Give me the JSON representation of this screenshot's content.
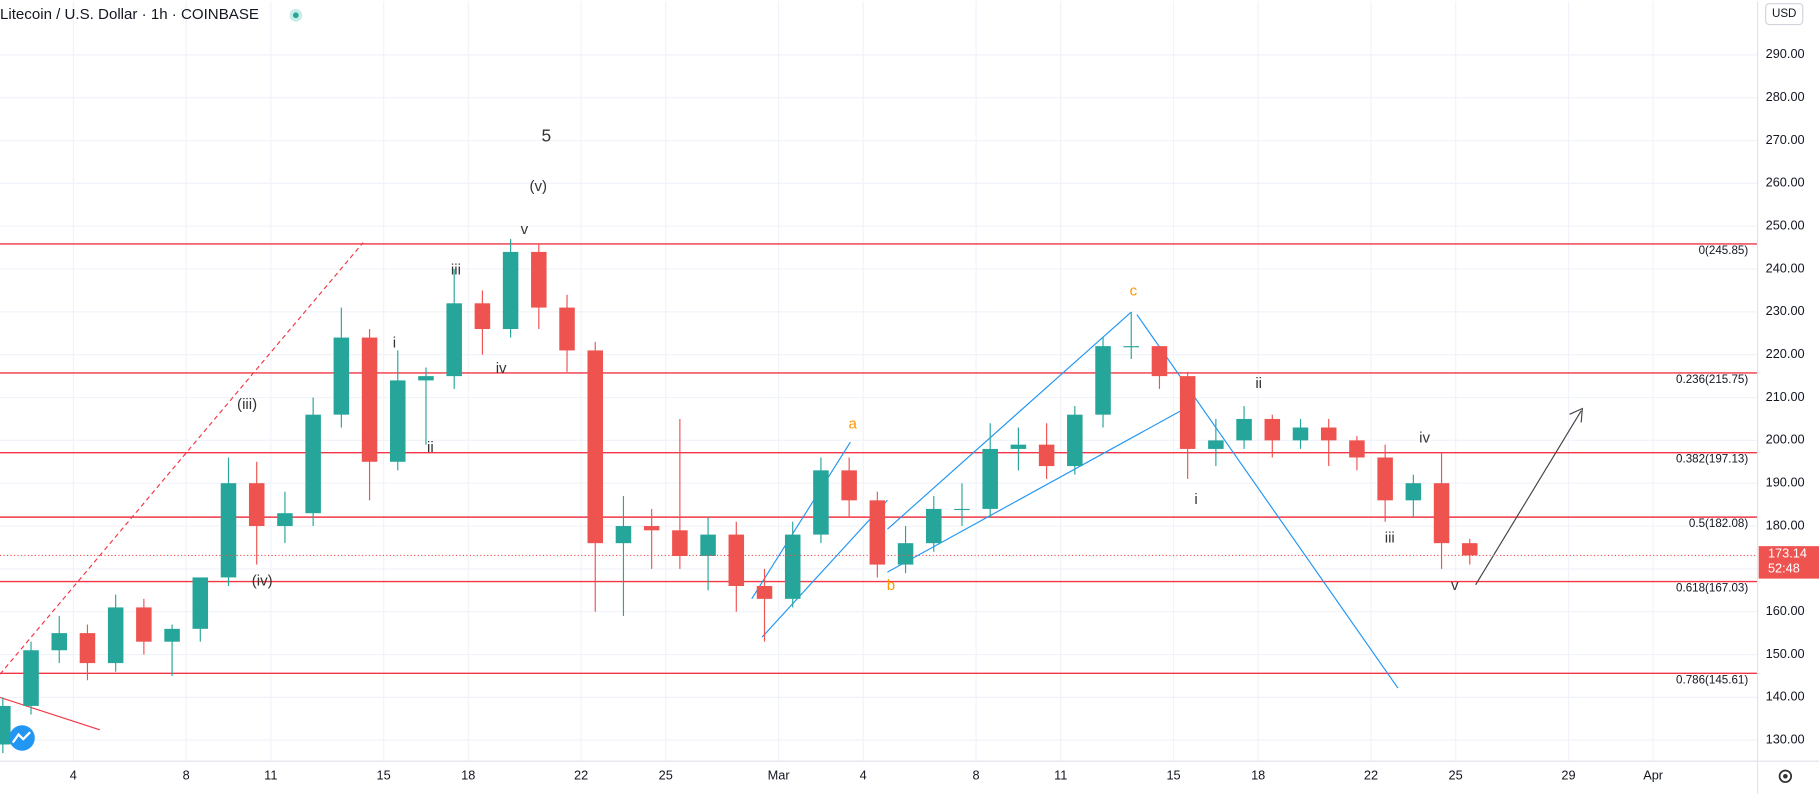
{
  "chart_data": {
    "type": "candlestick",
    "title": "Litecoin / U.S. Dollar · 1h · COINBASE",
    "currency": "USD",
    "countdown": "52:48",
    "x": [
      0.5,
      1.5,
      2.5,
      3.5,
      4.5,
      5.5,
      6.5,
      7.5,
      8.5,
      9.5,
      10.5,
      11.5,
      12.5,
      13.5,
      14.5,
      15.5,
      16.5,
      17.5,
      18.5,
      19.5,
      20.5,
      21.5,
      22.5,
      23.5,
      24.5,
      25.5,
      26.5,
      27.5,
      28.5,
      29.5,
      30.5,
      31.5,
      32.5,
      33.5,
      34.5,
      35.5,
      36.5,
      37.5,
      38.5,
      39.5,
      40.5,
      41.5,
      42.5,
      43.5,
      44.5,
      45.5,
      46.5,
      47.5,
      48.5,
      49.5,
      50.5,
      51.5,
      52.5
    ],
    "open": [
      129,
      138,
      151,
      155,
      148,
      161,
      153,
      156,
      168,
      190,
      180,
      183,
      206,
      224,
      195,
      214,
      215,
      232,
      226,
      244,
      231,
      221,
      176,
      180,
      179,
      173,
      178,
      166,
      163,
      178,
      193,
      186,
      171,
      176,
      184,
      184,
      198,
      199,
      194,
      206,
      222,
      222,
      215,
      198,
      200,
      205,
      200,
      203,
      200,
      196,
      186,
      190,
      176
    ],
    "high": [
      140,
      153,
      159,
      157,
      164,
      163,
      157,
      168,
      196,
      195,
      188,
      210,
      231,
      226,
      221,
      217,
      240,
      235,
      247,
      246,
      234,
      223,
      187,
      184,
      205,
      182,
      181,
      170,
      181,
      196,
      196,
      188,
      180,
      187,
      190,
      204,
      203,
      204,
      208,
      224,
      230,
      222,
      216,
      205,
      208,
      206,
      205,
      205,
      201,
      199,
      192,
      197,
      177
    ],
    "low": [
      127,
      136,
      148,
      144,
      146,
      150,
      145,
      153,
      166,
      171,
      176,
      180,
      203,
      186,
      193,
      199,
      212,
      220,
      224,
      226,
      216,
      160,
      159,
      170,
      170,
      165,
      160,
      153,
      161,
      176,
      182,
      168,
      169,
      174,
      180,
      182,
      193,
      191,
      192,
      203,
      219,
      212,
      191,
      194,
      198,
      196,
      198,
      194,
      193,
      181,
      182,
      170,
      171
    ],
    "close": [
      138,
      151,
      155,
      148,
      161,
      153,
      156,
      168,
      190,
      180,
      183,
      206,
      224,
      195,
      214,
      215,
      232,
      226,
      244,
      231,
      221,
      176,
      180,
      179,
      173,
      178,
      166,
      163,
      178,
      193,
      186,
      171,
      176,
      184,
      184,
      198,
      199,
      194,
      206,
      222,
      222,
      215,
      198,
      200,
      205,
      200,
      203,
      200,
      196,
      186,
      190,
      176,
      173.14
    ],
    "up_color": "#26a69a",
    "down_color": "#ef5350",
    "xlim": [
      0.4,
      62.7
    ],
    "ylim": [
      125.1,
      302.5
    ],
    "xticks": [
      {
        "value": 3,
        "label": "4"
      },
      {
        "value": 7,
        "label": "8"
      },
      {
        "value": 10,
        "label": "11"
      },
      {
        "value": 14,
        "label": "15"
      },
      {
        "value": 17,
        "label": "18"
      },
      {
        "value": 21,
        "label": "22"
      },
      {
        "value": 24,
        "label": "25"
      },
      {
        "value": 28,
        "label": "Mar"
      },
      {
        "value": 31,
        "label": "4"
      },
      {
        "value": 35,
        "label": "8"
      },
      {
        "value": 38,
        "label": "11"
      },
      {
        "value": 42,
        "label": "15"
      },
      {
        "value": 45,
        "label": "18"
      },
      {
        "value": 49,
        "label": "22"
      },
      {
        "value": 52,
        "label": "25"
      },
      {
        "value": 56,
        "label": "29"
      },
      {
        "value": 59,
        "label": "Apr"
      }
    ],
    "yticks": [
      {
        "value": 130,
        "label": "130.00"
      },
      {
        "value": 140,
        "label": "140.00"
      },
      {
        "value": 150,
        "label": "150.00"
      },
      {
        "value": 160,
        "label": "160.00"
      },
      {
        "value": 170,
        "label": "170.00"
      },
      {
        "value": 180,
        "label": "180.00"
      },
      {
        "value": 190,
        "label": "190.00"
      },
      {
        "value": 200,
        "label": "200.00"
      },
      {
        "value": 210,
        "label": "210.00"
      },
      {
        "value": 220,
        "label": "220.00"
      },
      {
        "value": 230,
        "label": "230.00"
      },
      {
        "value": 240,
        "label": "240.00"
      },
      {
        "value": 250,
        "label": "250.00"
      },
      {
        "value": 260,
        "label": "260.00"
      },
      {
        "value": 270,
        "label": "270.00"
      },
      {
        "value": 280,
        "label": "280.00"
      },
      {
        "value": 290,
        "label": "290.00"
      }
    ],
    "grid": true,
    "level_color": "#f23645",
    "levels": [
      {
        "value": 245.85,
        "label": "0(245.85)"
      },
      {
        "value": 215.75,
        "label": "0.236(215.75)"
      },
      {
        "value": 197.13,
        "label": "0.382(197.13)"
      },
      {
        "value": 182.08,
        "label": "0.5(182.08)"
      },
      {
        "value": 167.03,
        "label": "0.618(167.03)"
      },
      {
        "value": 145.61,
        "label": "0.786(145.61)"
      }
    ],
    "annotations": [
      {
        "text": "5",
        "color": "#333333"
      },
      {
        "text": "(v)",
        "color": "#333333"
      },
      {
        "text": "v",
        "color": "#333333"
      },
      {
        "text": "iii",
        "color": "#333333"
      },
      {
        "text": "i",
        "color": "#333333"
      },
      {
        "text": "iv",
        "color": "#333333"
      },
      {
        "text": "ii",
        "color": "#333333"
      },
      {
        "text": "(iii)",
        "color": "#333333"
      },
      {
        "text": "(iv)",
        "color": "#333333"
      },
      {
        "text": "a",
        "color": "#ff9800"
      },
      {
        "text": "b",
        "color": "#ff9800"
      },
      {
        "text": "c",
        "color": "#ff9800"
      },
      {
        "text": "ii",
        "color": "#333333"
      },
      {
        "text": "i",
        "color": "#333333"
      },
      {
        "text": "iii",
        "color": "#333333"
      },
      {
        "text": "iv",
        "color": "#333333"
      },
      {
        "text": "v",
        "color": "#333333"
      }
    ]
  }
}
